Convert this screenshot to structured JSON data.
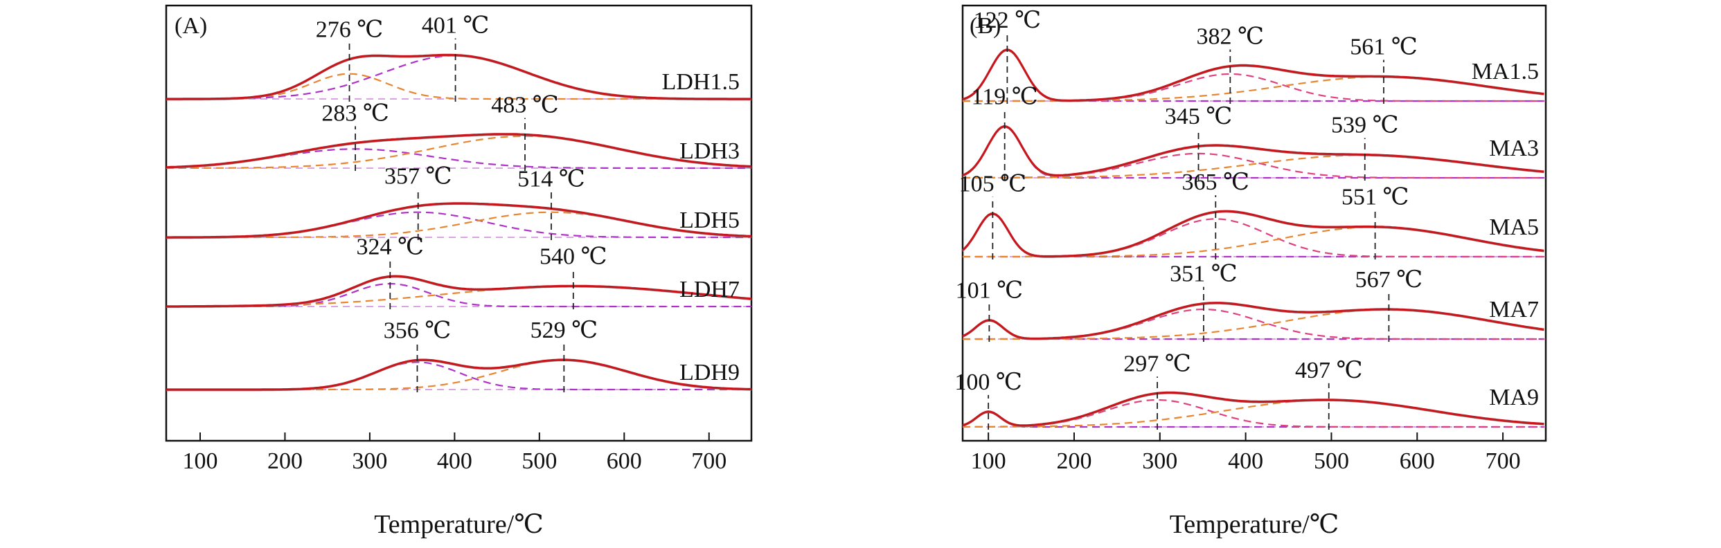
{
  "colors": {
    "envelope": "#c8161d",
    "raw": "#8a8a8a",
    "fit_orange": "#e8852e",
    "fit_purple": "#b031c9",
    "fit_pink": "#e0417e",
    "axes": "#111111",
    "marker": "#222222"
  },
  "chart_data": [
    {
      "type": "line",
      "panel_label": "(A)",
      "xlabel": "Temperature/℃",
      "ylabel": "",
      "xlim": [
        60,
        750
      ],
      "xticks": [
        100,
        200,
        300,
        400,
        500,
        600,
        700
      ],
      "y_ticks_shown": false,
      "curves": [
        {
          "name": "LDH1.5",
          "peaks": [
            {
              "center": 276,
              "label": "276 ℃",
              "amplitude": 0.55,
              "sigma": 45,
              "color": "fit_orange"
            },
            {
              "center": 401,
              "label": "401 ℃",
              "amplitude": 0.95,
              "sigma": 85,
              "color": "fit_purple"
            }
          ]
        },
        {
          "name": "LDH3",
          "peaks": [
            {
              "center": 283,
              "label": "283 ℃",
              "amplitude": 0.42,
              "sigma": 90,
              "color": "fit_purple"
            },
            {
              "center": 483,
              "label": "483 ℃",
              "amplitude": 0.7,
              "sigma": 110,
              "color": "fit_orange"
            }
          ]
        },
        {
          "name": "LDH5",
          "peaks": [
            {
              "center": 357,
              "label": "357 ℃",
              "amplitude": 0.55,
              "sigma": 80,
              "color": "fit_purple"
            },
            {
              "center": 514,
              "label": "514 ℃",
              "amplitude": 0.55,
              "sigma": 95,
              "color": "fit_orange"
            }
          ]
        },
        {
          "name": "LDH7",
          "peaks": [
            {
              "center": 324,
              "label": "324 ℃",
              "amplitude": 0.5,
              "sigma": 45,
              "color": "fit_purple"
            },
            {
              "center": 540,
              "label": "540 ℃",
              "amplitude": 0.45,
              "sigma": 150,
              "color": "fit_orange"
            }
          ]
        },
        {
          "name": "LDH9",
          "peaks": [
            {
              "center": 356,
              "label": "356 ℃",
              "amplitude": 0.6,
              "sigma": 50,
              "color": "fit_purple"
            },
            {
              "center": 529,
              "label": "529 ℃",
              "amplitude": 0.65,
              "sigma": 75,
              "color": "fit_orange"
            }
          ]
        }
      ]
    },
    {
      "type": "line",
      "panel_label": "(B)",
      "xlabel": "Temperature/℃",
      "ylabel": "",
      "xlim": [
        70,
        750
      ],
      "xticks": [
        100,
        200,
        300,
        400,
        500,
        600,
        700
      ],
      "y_ticks_shown": false,
      "curves": [
        {
          "name": "MA1.5",
          "peaks": [
            {
              "center": 122,
              "label": "122 ℃",
              "amplitude": 0.95,
              "sigma": 20,
              "color": "fit_purple"
            },
            {
              "center": 382,
              "label": "382 ℃",
              "amplitude": 0.5,
              "sigma": 60,
              "color": "fit_pink"
            },
            {
              "center": 561,
              "label": "561 ℃",
              "amplitude": 0.45,
              "sigma": 120,
              "color": "fit_orange"
            }
          ]
        },
        {
          "name": "MA3",
          "peaks": [
            {
              "center": 119,
              "label": "119 ℃",
              "amplitude": 0.95,
              "sigma": 20,
              "color": "fit_purple"
            },
            {
              "center": 345,
              "label": "345 ℃",
              "amplitude": 0.45,
              "sigma": 70,
              "color": "fit_pink"
            },
            {
              "center": 539,
              "label": "539 ℃",
              "amplitude": 0.42,
              "sigma": 130,
              "color": "fit_orange"
            }
          ]
        },
        {
          "name": "MA5",
          "peaks": [
            {
              "center": 105,
              "label": "105 ℃",
              "amplitude": 0.8,
              "sigma": 18,
              "color": "fit_purple"
            },
            {
              "center": 365,
              "label": "365 ℃",
              "amplitude": 0.7,
              "sigma": 60,
              "color": "fit_pink"
            },
            {
              "center": 551,
              "label": "551 ℃",
              "amplitude": 0.55,
              "sigma": 110,
              "color": "fit_orange"
            }
          ]
        },
        {
          "name": "MA7",
          "peaks": [
            {
              "center": 101,
              "label": "101 ℃",
              "amplitude": 0.35,
              "sigma": 16,
              "color": "fit_purple"
            },
            {
              "center": 351,
              "label": "351 ℃",
              "amplitude": 0.55,
              "sigma": 65,
              "color": "fit_pink"
            },
            {
              "center": 567,
              "label": "567 ℃",
              "amplitude": 0.55,
              "sigma": 120,
              "color": "fit_orange"
            }
          ]
        },
        {
          "name": "MA9",
          "peaks": [
            {
              "center": 100,
              "label": "100 ℃",
              "amplitude": 0.28,
              "sigma": 14,
              "color": "fit_purple"
            },
            {
              "center": 297,
              "label": "297 ℃",
              "amplitude": 0.5,
              "sigma": 60,
              "color": "fit_pink"
            },
            {
              "center": 497,
              "label": "497 ℃",
              "amplitude": 0.5,
              "sigma": 120,
              "color": "fit_orange"
            }
          ]
        }
      ]
    }
  ]
}
